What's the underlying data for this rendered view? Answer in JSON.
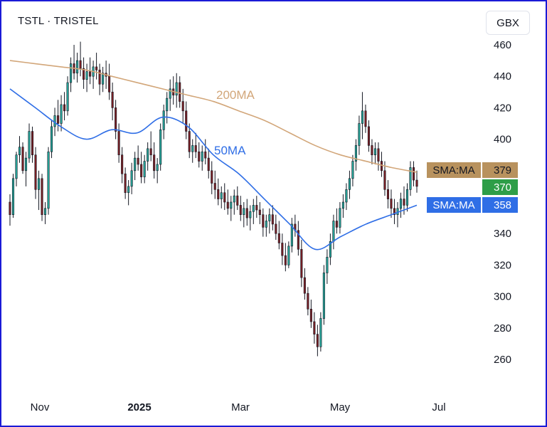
{
  "header": {
    "title": "TSTL · TRISTEL",
    "currency": "GBX"
  },
  "colors": {
    "up": "#26a69a",
    "down": "#7a1f24",
    "wick": "#131722",
    "sma200": "#d2a679",
    "sma50": "#2f6ee6",
    "last_price": "#2e9e48",
    "sma200_tag": "#b8925e",
    "sma50_tag": "#2f6ee6"
  },
  "chart_data": {
    "type": "candlestick",
    "y_axis": {
      "ticks": [
        260,
        280,
        300,
        320,
        340,
        360,
        380,
        400,
        420,
        440,
        460
      ]
    },
    "x_axis": {
      "ticks": [
        "Nov",
        "2025",
        "Mar",
        "May",
        "Jul"
      ],
      "bold": [
        "2025"
      ]
    },
    "annotations": [
      {
        "text": "200MA",
        "series": "sma200"
      },
      {
        "text": "50MA",
        "series": "sma50"
      }
    ],
    "price_tags": [
      {
        "label": "SMA:MA",
        "value": "379",
        "series": "sma200"
      },
      {
        "label": "",
        "value": "370",
        "series": "last"
      },
      {
        "label": "SMA:MA",
        "value": "358",
        "series": "sma50"
      }
    ],
    "candles": [
      [
        360,
        365,
        345,
        352
      ],
      [
        352,
        378,
        350,
        375
      ],
      [
        375,
        392,
        370,
        390
      ],
      [
        390,
        402,
        385,
        395
      ],
      [
        395,
        398,
        378,
        380
      ],
      [
        380,
        392,
        370,
        388
      ],
      [
        388,
        410,
        385,
        405
      ],
      [
        405,
        408,
        385,
        390
      ],
      [
        390,
        395,
        362,
        368
      ],
      [
        368,
        380,
        355,
        375
      ],
      [
        375,
        378,
        348,
        352
      ],
      [
        352,
        360,
        346,
        356
      ],
      [
        356,
        395,
        352,
        392
      ],
      [
        392,
        412,
        388,
        408
      ],
      [
        408,
        420,
        402,
        415
      ],
      [
        415,
        425,
        405,
        410
      ],
      [
        410,
        428,
        405,
        422
      ],
      [
        422,
        430,
        412,
        418
      ],
      [
        418,
        440,
        415,
        436
      ],
      [
        436,
        452,
        430,
        448
      ],
      [
        448,
        460,
        438,
        442
      ],
      [
        442,
        455,
        436,
        450
      ],
      [
        450,
        462,
        440,
        445
      ],
      [
        445,
        452,
        432,
        438
      ],
      [
        438,
        448,
        430,
        443
      ],
      [
        443,
        452,
        435,
        440
      ],
      [
        440,
        450,
        432,
        446
      ],
      [
        446,
        455,
        438,
        444
      ],
      [
        444,
        448,
        428,
        435
      ],
      [
        435,
        446,
        430,
        442
      ],
      [
        442,
        450,
        432,
        440
      ],
      [
        440,
        448,
        425,
        430
      ],
      [
        430,
        436,
        412,
        420
      ],
      [
        420,
        425,
        400,
        405
      ],
      [
        405,
        410,
        385,
        390
      ],
      [
        390,
        395,
        372,
        378
      ],
      [
        378,
        382,
        362,
        366
      ],
      [
        366,
        374,
        358,
        370
      ],
      [
        370,
        385,
        365,
        380
      ],
      [
        380,
        392,
        374,
        388
      ],
      [
        388,
        396,
        380,
        384
      ],
      [
        384,
        392,
        372,
        376
      ],
      [
        376,
        390,
        372,
        386
      ],
      [
        386,
        398,
        380,
        394
      ],
      [
        394,
        405,
        386,
        390
      ],
      [
        390,
        398,
        375,
        380
      ],
      [
        380,
        388,
        372,
        384
      ],
      [
        384,
        410,
        380,
        406
      ],
      [
        406,
        422,
        400,
        418
      ],
      [
        418,
        430,
        410,
        426
      ],
      [
        426,
        438,
        418,
        432
      ],
      [
        432,
        440,
        422,
        428
      ],
      [
        428,
        442,
        420,
        436
      ],
      [
        436,
        440,
        420,
        424
      ],
      [
        424,
        432,
        410,
        418
      ],
      [
        418,
        424,
        400,
        405
      ],
      [
        405,
        410,
        388,
        392
      ],
      [
        392,
        400,
        385,
        396
      ],
      [
        396,
        404,
        388,
        392
      ],
      [
        392,
        398,
        382,
        386
      ],
      [
        386,
        396,
        380,
        392
      ],
      [
        392,
        400,
        384,
        388
      ],
      [
        388,
        394,
        375,
        380
      ],
      [
        380,
        386,
        365,
        372
      ],
      [
        372,
        380,
        362,
        368
      ],
      [
        368,
        375,
        358,
        362
      ],
      [
        362,
        370,
        356,
        366
      ],
      [
        366,
        372,
        355,
        360
      ],
      [
        360,
        368,
        352,
        356
      ],
      [
        356,
        364,
        348,
        360
      ],
      [
        360,
        368,
        352,
        364
      ],
      [
        364,
        370,
        355,
        358
      ],
      [
        358,
        364,
        348,
        352
      ],
      [
        352,
        360,
        344,
        356
      ],
      [
        356,
        362,
        345,
        350
      ],
      [
        350,
        358,
        342,
        354
      ],
      [
        354,
        362,
        346,
        358
      ],
      [
        358,
        364,
        350,
        355
      ],
      [
        355,
        360,
        346,
        352
      ],
      [
        352,
        356,
        338,
        344
      ],
      [
        344,
        352,
        338,
        348
      ],
      [
        348,
        356,
        340,
        352
      ],
      [
        352,
        358,
        342,
        346
      ],
      [
        346,
        352,
        336,
        340
      ],
      [
        340,
        348,
        330,
        334
      ],
      [
        334,
        340,
        320,
        326
      ],
      [
        326,
        334,
        316,
        320
      ],
      [
        320,
        335,
        318,
        332
      ],
      [
        332,
        350,
        328,
        346
      ],
      [
        346,
        352,
        338,
        342
      ],
      [
        342,
        348,
        326,
        330
      ],
      [
        330,
        336,
        306,
        312
      ],
      [
        312,
        318,
        298,
        302
      ],
      [
        302,
        306,
        288,
        292
      ],
      [
        292,
        298,
        280,
        284
      ],
      [
        284,
        290,
        270,
        276
      ],
      [
        276,
        282,
        262,
        268
      ],
      [
        268,
        290,
        265,
        286
      ],
      [
        286,
        320,
        282,
        315
      ],
      [
        315,
        330,
        308,
        325
      ],
      [
        325,
        340,
        320,
        335
      ],
      [
        335,
        352,
        330,
        348
      ],
      [
        348,
        356,
        340,
        344
      ],
      [
        344,
        360,
        340,
        356
      ],
      [
        356,
        365,
        350,
        360
      ],
      [
        360,
        372,
        355,
        368
      ],
      [
        368,
        380,
        362,
        375
      ],
      [
        375,
        390,
        370,
        386
      ],
      [
        386,
        400,
        380,
        396
      ],
      [
        396,
        415,
        390,
        410
      ],
      [
        410,
        430,
        400,
        418
      ],
      [
        418,
        422,
        404,
        408
      ],
      [
        408,
        412,
        392,
        396
      ],
      [
        396,
        400,
        384,
        390
      ],
      [
        390,
        398,
        384,
        394
      ],
      [
        394,
        398,
        380,
        386
      ],
      [
        386,
        392,
        376,
        380
      ],
      [
        380,
        386,
        364,
        368
      ],
      [
        368,
        374,
        356,
        362
      ],
      [
        362,
        368,
        350,
        356
      ],
      [
        356,
        362,
        346,
        352
      ],
      [
        352,
        360,
        344,
        356
      ],
      [
        356,
        366,
        350,
        362
      ],
      [
        362,
        370,
        352,
        358
      ],
      [
        358,
        372,
        354,
        368
      ],
      [
        368,
        386,
        364,
        382
      ],
      [
        382,
        386,
        370,
        374
      ],
      [
        374,
        380,
        366,
        370
      ]
    ],
    "sma200": [
      450,
      448,
      446,
      444,
      440,
      436,
      432,
      428,
      424,
      418,
      412,
      404,
      396,
      390,
      386,
      382,
      379
    ],
    "sma50": [
      432,
      420,
      408,
      400,
      406,
      404,
      414,
      408,
      390,
      378,
      362,
      346,
      330,
      338,
      346,
      352,
      358
    ]
  }
}
